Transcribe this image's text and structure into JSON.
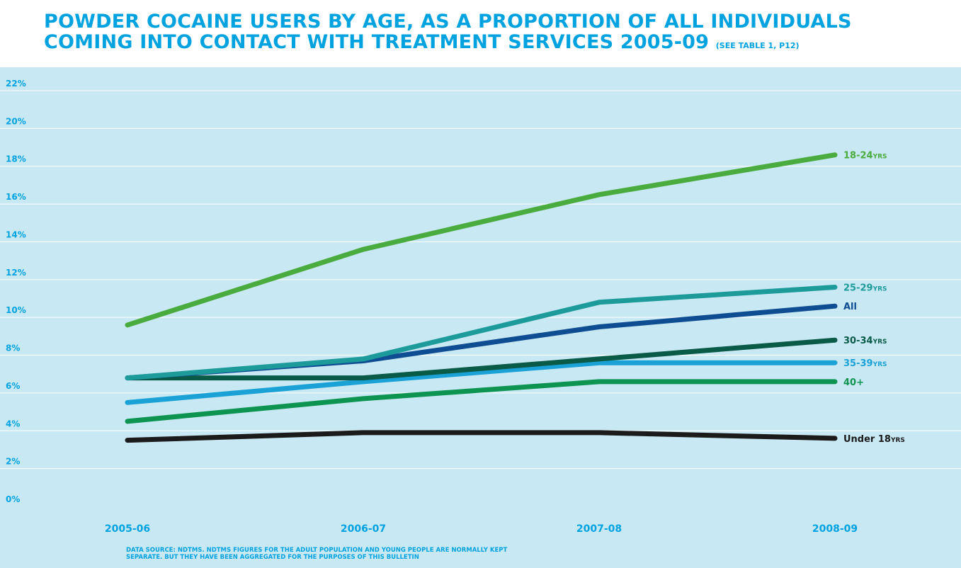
{
  "title": {
    "line1": "POWDER COCAINE USERS BY AGE, AS A PROPORTION OF ALL INDIVIDUALS",
    "line2": "COMING INTO CONTACT WITH TREATMENT SERVICES 2005-09",
    "reference": "(SEE TABLE 1, P12)"
  },
  "source": {
    "line1": "DATA SOURCE: NDTMS. NDTMS FIGURES FOR THE ADULT POPULATION AND YOUNG PEOPLE ARE NORMALLY KEPT",
    "line2": "SEPARATE. BUT THEY HAVE BEEN AGGREGATED FOR THE PURPOSES OF THIS BULLETIN"
  },
  "colors": {
    "background_panel": "#c8e8f3",
    "accent": "#00a3e0",
    "gridline": "#ffffff"
  },
  "chart_data": {
    "type": "line",
    "title": "POWDER COCAINE USERS BY AGE, AS A PROPORTION OF ALL INDIVIDUALS COMING INTO CONTACT WITH TREATMENT SERVICES 2005-09",
    "categories": [
      "2005-06",
      "2006-07",
      "2007-08",
      "2008-09"
    ],
    "ylim": [
      0,
      22
    ],
    "yticks": [
      0,
      2,
      4,
      6,
      8,
      10,
      12,
      14,
      16,
      18,
      20,
      22
    ],
    "ytick_labels": [
      "0%",
      "2%",
      "4%",
      "6%",
      "8%",
      "10%",
      "12%",
      "14%",
      "16%",
      "18%",
      "20%",
      "22%"
    ],
    "grid": true,
    "legend": "labels at line ends (right)",
    "series": [
      {
        "name": "18-24",
        "unit": "YRS",
        "color": "#4aab3e",
        "values": [
          9.6,
          13.6,
          16.5,
          18.6
        ]
      },
      {
        "name": "25-29",
        "unit": "YRS",
        "color": "#1d9b9b",
        "values": [
          6.8,
          7.8,
          10.8,
          11.6
        ]
      },
      {
        "name": "All",
        "unit": "",
        "color": "#0e4d92",
        "values": [
          6.8,
          7.7,
          9.5,
          10.6
        ]
      },
      {
        "name": "30-34",
        "unit": "YRS",
        "color": "#0a5a48",
        "values": [
          6.8,
          6.8,
          7.8,
          8.8
        ]
      },
      {
        "name": "35-39",
        "unit": "YRS",
        "color": "#1aa2d6",
        "values": [
          5.5,
          6.6,
          7.6,
          7.6
        ]
      },
      {
        "name": "40+",
        "unit": "",
        "color": "#0d9450",
        "values": [
          4.5,
          5.7,
          6.6,
          6.6
        ]
      },
      {
        "name": "Under 18",
        "unit": "YRS",
        "color": "#1b1b1b",
        "values": [
          3.5,
          3.9,
          3.9,
          3.6
        ]
      }
    ]
  }
}
